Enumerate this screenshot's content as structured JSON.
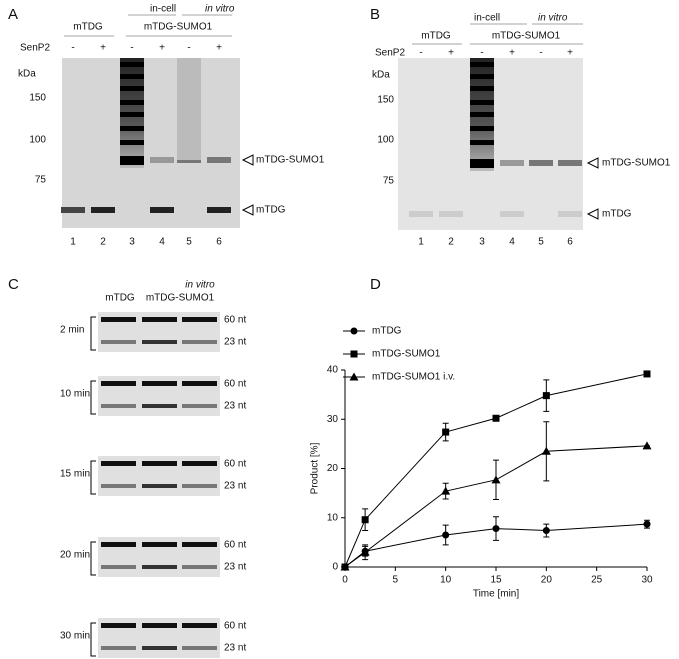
{
  "panel_a": {
    "label": "A",
    "group1": "mTDG",
    "incell": "in-cell",
    "invitro": "in vitro",
    "group2": "mTDG-SUMO1",
    "enzyme": "SenP2",
    "signs": [
      "-",
      "+",
      "-",
      "+",
      "-",
      "+"
    ],
    "unit": "kDa",
    "markers": [
      "150",
      "100",
      "75"
    ],
    "band_upper": "mTDG-SUMO1",
    "band_lower": "mTDG",
    "lanes": [
      "1",
      "2",
      "3",
      "4",
      "5",
      "6"
    ]
  },
  "panel_b": {
    "label": "B",
    "group1": "mTDG",
    "incell": "in-cell",
    "invitro": "in vitro",
    "group2": "mTDG-SUMO1",
    "enzyme": "SenP2",
    "signs": [
      "-",
      "+",
      "-",
      "+",
      "-",
      "+"
    ],
    "unit": "kDa",
    "markers": [
      "150",
      "100",
      "75"
    ],
    "band_upper": "mTDG-SUMO1",
    "band_lower": "mTDG",
    "lanes": [
      "1",
      "2",
      "3",
      "4",
      "5",
      "6"
    ]
  },
  "panel_c": {
    "label": "C",
    "group1": "mTDG",
    "group2": "mTDG-SUMO1",
    "invitro": "in vitro",
    "times": [
      "2 min",
      "10 min",
      "15 min",
      "20 min",
      "30 min"
    ],
    "band_upper": "60 nt",
    "band_lower": "23 nt"
  },
  "panel_d": {
    "label": "D"
  },
  "chart_data": {
    "type": "line",
    "x_label": "Time [min]",
    "y_label": "Product [%]",
    "x": [
      0,
      2,
      10,
      15,
      20,
      30
    ],
    "xlim": [
      0,
      30
    ],
    "xticks": [
      0,
      5,
      10,
      15,
      20,
      25,
      30
    ],
    "ylim": [
      0,
      40
    ],
    "yticks": [
      0,
      10,
      20,
      30,
      40
    ],
    "series": [
      {
        "name": "mTDG",
        "color": "#000000",
        "marker": "circle",
        "values": [
          0,
          3.2,
          6.5,
          7.8,
          7.4,
          8.7
        ],
        "errors": [
          0,
          1.0,
          2.0,
          2.4,
          1.3,
          0.8
        ]
      },
      {
        "name": "mTDG-SUMO1",
        "color": "#000000",
        "marker": "square",
        "values": [
          0,
          9.6,
          27.4,
          30.2,
          34.8,
          39.2
        ],
        "errors": [
          0,
          2.2,
          1.8,
          0.5,
          3.2,
          0
        ]
      },
      {
        "name": "mTDG-SUMO1 i.v.",
        "color": "#000000",
        "marker": "triangle",
        "values": [
          0,
          3.0,
          15.4,
          17.7,
          23.5,
          24.6
        ],
        "errors": [
          0,
          1.5,
          1.6,
          4.0,
          6.0,
          0
        ]
      }
    ]
  }
}
